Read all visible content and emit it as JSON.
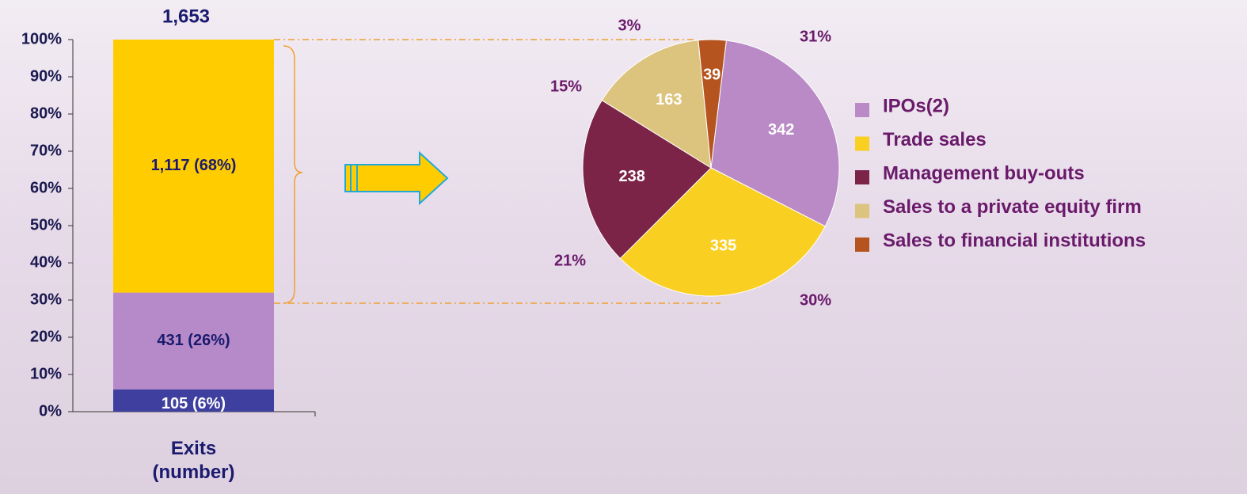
{
  "chart_data": [
    {
      "type": "stacked-bar",
      "total_label": "1,653",
      "categories": [
        "Exits (number)"
      ],
      "series": [
        {
          "color": "#3f3fa0",
          "values": [
            6
          ],
          "value_labels": [
            "105 (6%)"
          ]
        },
        {
          "color": "#b68ac8",
          "values": [
            26
          ],
          "value_labels": [
            "431 (26%)"
          ]
        },
        {
          "color": "#ffcc00",
          "values": [
            68
          ],
          "value_labels": [
            "1,117  (68%)"
          ]
        }
      ],
      "ylim": [
        0,
        100
      ],
      "yticks": [
        {
          "value": 0,
          "label": "0%"
        },
        {
          "value": 10,
          "label": "10%"
        },
        {
          "value": 20,
          "label": "20%"
        },
        {
          "value": 30,
          "label": "30%"
        },
        {
          "value": 40,
          "label": "40%"
        },
        {
          "value": 50,
          "label": "50%"
        },
        {
          "value": 60,
          "label": "60%"
        },
        {
          "value": 70,
          "label": "70%"
        },
        {
          "value": 80,
          "label": "80%"
        },
        {
          "value": 90,
          "label": "90%"
        },
        {
          "value": 100,
          "label": "100%"
        }
      ]
    },
    {
      "type": "pie",
      "categories": [
        "IPOs(2)",
        "Trade sales",
        "Management buy-outs",
        "Sales to a private equity firm",
        "Sales to financial institutions"
      ],
      "values": [
        342,
        335,
        238,
        163,
        39
      ],
      "percent_labels": [
        "31%",
        "30%",
        "21%",
        "15%",
        "3%"
      ],
      "colors": [
        "#b98ac6",
        "#f9cf21",
        "#7b2447",
        "#dcc47e",
        "#b5541f"
      ]
    }
  ]
}
